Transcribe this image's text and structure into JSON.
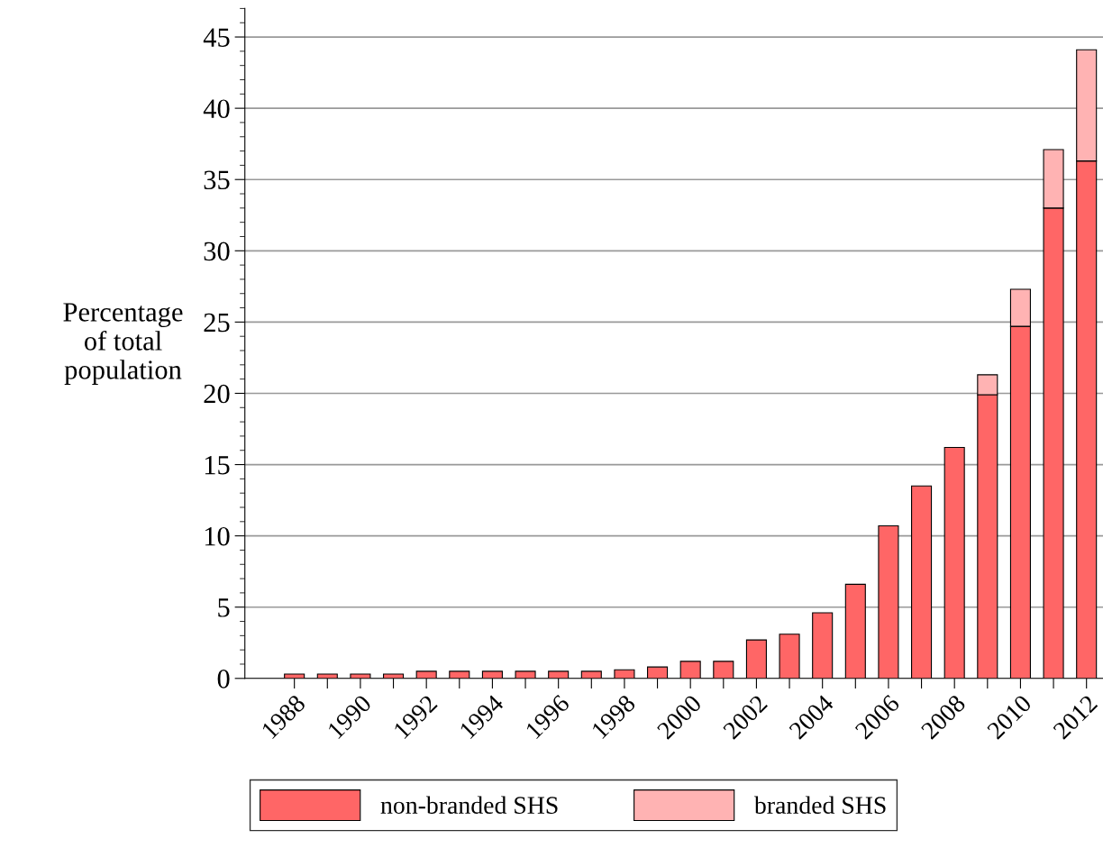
{
  "chart_data": {
    "type": "bar",
    "stacked": true,
    "ylabel": "Percentage\nof total\npopulation",
    "categories": [
      "1988",
      null,
      "1990",
      null,
      "1992",
      null,
      "1994",
      null,
      "1996",
      null,
      "1998",
      null,
      "2000",
      null,
      "2002",
      null,
      "2004",
      null,
      "2006",
      null,
      "2008",
      null,
      "2010",
      null,
      "2012"
    ],
    "series": [
      {
        "name": "non-branded SHS",
        "color": "#ff6666",
        "values": [
          0.3,
          0.3,
          0.3,
          0.3,
          0.5,
          0.5,
          0.5,
          0.5,
          0.5,
          0.5,
          0.6,
          0.8,
          1.2,
          1.2,
          2.7,
          3.1,
          4.6,
          6.6,
          10.7,
          13.5,
          16.2,
          19.9,
          24.7,
          33.0,
          36.3
        ]
      },
      {
        "name": "branded SHS",
        "color": "#ffb3b3",
        "values": [
          null,
          null,
          null,
          null,
          null,
          null,
          null,
          null,
          null,
          null,
          null,
          null,
          null,
          null,
          null,
          null,
          null,
          null,
          null,
          null,
          null,
          1.4,
          2.6,
          4.1,
          7.8
        ]
      }
    ],
    "ylim": [
      0,
      47
    ],
    "yticks": [
      0,
      5,
      10,
      15,
      20,
      25,
      30,
      35,
      40,
      45
    ],
    "grid": "y",
    "legend": "bottom"
  }
}
